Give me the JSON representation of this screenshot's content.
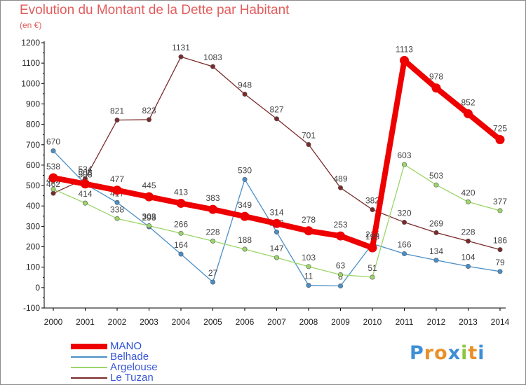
{
  "title": "Evolution du Montant de la Dette par Habitant",
  "subtitle": "(en €)",
  "logo_text": "Proxiti",
  "colors": {
    "axis": "#000000",
    "grid": "#dcdcdc",
    "title": "#e35d5d",
    "logo_letters": [
      "#3d8fd6",
      "#e8912a",
      "#e8912a",
      "#3d8fd6",
      "#8cc63e",
      "#e8912a",
      "#3d8fd6"
    ]
  },
  "chart_data": {
    "type": "line",
    "title": "Evolution du Montant de la Dette par Habitant",
    "subtitle": "(en €)",
    "xlabel": "",
    "ylabel": "",
    "x": [
      "2000",
      "2001",
      "2002",
      "2003",
      "2004",
      "2005",
      "2006",
      "2007",
      "2008",
      "2009",
      "2010",
      "2011",
      "2012",
      "2013",
      "2014"
    ],
    "ylim": [
      -100,
      1200
    ],
    "yticks": [
      -100,
      0,
      100,
      200,
      300,
      400,
      500,
      600,
      700,
      800,
      900,
      1000,
      1100,
      1200
    ],
    "ytick_labels": [
      "-100",
      "0",
      "100",
      "200",
      "300",
      "400",
      "500",
      "600",
      "700",
      "800",
      "900",
      "1000",
      "1100",
      "1200"
    ],
    "grid": false,
    "legend_position": "bottom-left",
    "series": [
      {
        "name": "Le Tuzan",
        "color": "#7b2a2a",
        "emphasis": false,
        "values": [
          462,
          534,
          821,
          823,
          1131,
          1083,
          948,
          827,
          701,
          489,
          382,
          320,
          269,
          228,
          186
        ]
      },
      {
        "name": "Belhade",
        "color": "#4a8fc7",
        "emphasis": false,
        "values": [
          670,
          508,
          417,
          298,
          164,
          27,
          530,
          272,
          11,
          8,
          215,
          166,
          134,
          104,
          79
        ]
      },
      {
        "name": "Argelouse",
        "color": "#9bd66a",
        "emphasis": false,
        "values": [
          482,
          414,
          338,
          303,
          266,
          228,
          188,
          147,
          103,
          63,
          51,
          603,
          503,
          420,
          377
        ]
      },
      {
        "name": "MANO",
        "color": "#ee0000",
        "emphasis": true,
        "values": [
          538,
          508,
          477,
          445,
          413,
          383,
          349,
          314,
          278,
          253,
          195,
          1113,
          978,
          852,
          725
        ]
      }
    ],
    "legend": [
      {
        "name": "MANO",
        "color": "#ee0000"
      },
      {
        "name": "Belhade",
        "color": "#4a8fc7"
      },
      {
        "name": "Argelouse",
        "color": "#9bd66a"
      },
      {
        "name": "Le Tuzan",
        "color": "#7b2a2a"
      }
    ]
  }
}
